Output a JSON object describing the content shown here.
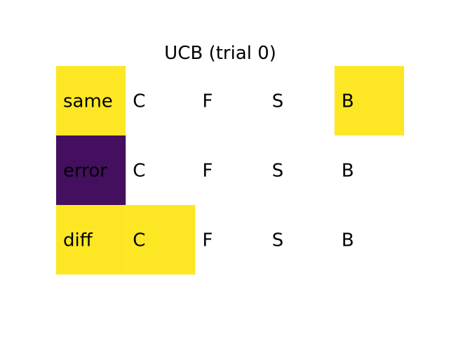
{
  "chart_data": {
    "type": "heatmap",
    "title": "UCB (trial 0)",
    "columns": [
      "",
      "C",
      "F",
      "S",
      "B"
    ],
    "rows": [
      {
        "cells": [
          {
            "text": "same",
            "color": "#fde725"
          },
          {
            "text": "C",
            "color": null
          },
          {
            "text": "F",
            "color": null
          },
          {
            "text": "S",
            "color": null
          },
          {
            "text": "B",
            "color": "#fde725"
          }
        ]
      },
      {
        "cells": [
          {
            "text": "error",
            "color": "#440f5f"
          },
          {
            "text": "C",
            "color": null
          },
          {
            "text": "F",
            "color": null
          },
          {
            "text": "S",
            "color": null
          },
          {
            "text": "B",
            "color": null
          }
        ]
      },
      {
        "cells": [
          {
            "text": "diff",
            "color": "#fde725"
          },
          {
            "text": "C",
            "color": "#fde725"
          },
          {
            "text": "F",
            "color": null
          },
          {
            "text": "S",
            "color": null
          },
          {
            "text": "B",
            "color": null
          }
        ]
      }
    ]
  }
}
